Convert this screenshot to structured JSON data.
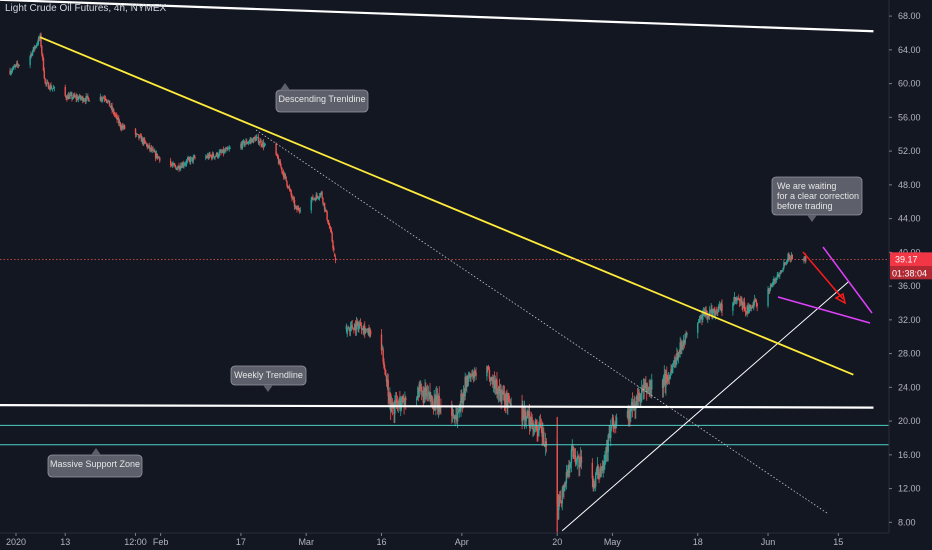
{
  "title": "Light Crude Oil Futures, 4h, NYMEX",
  "price_tag": "39.17",
  "countdown_tag": "01:38:04",
  "annotations": {
    "descending": "Descending Trenldine",
    "weekly": "Weekly Trendline",
    "support": "Massive Support Zone",
    "waiting": [
      "We are waiting",
      "for a clear correction",
      "before trading"
    ]
  },
  "colors": {
    "background": "#131722",
    "bull_candle": "#26a69a",
    "bear_candle": "#ef5350",
    "descending_trendline": "#ffeb3b",
    "horizontal_lines": "#ffffff",
    "support_zone_lines": "#4dd0c8",
    "price_line": "#ef5350",
    "arrow": "#ff1a1a",
    "triangle": "#e040fb"
  },
  "chart_data": {
    "type": "candlestick",
    "y_axis": {
      "range": [
        6.5,
        70.5
      ],
      "ticks": [
        "68.00",
        "64.00",
        "60.00",
        "56.00",
        "52.00",
        "48.00",
        "44.00",
        "40.00",
        "36.00",
        "32.00",
        "28.00",
        "24.00",
        "20.00",
        "16.00",
        "12.00",
        "8.00"
      ]
    },
    "x_axis": {
      "ticks": [
        "2020",
        "13",
        "12:00",
        "Feb",
        "17",
        "Mar",
        "16",
        "Apr",
        "20",
        "May",
        "18",
        "Jun",
        "15"
      ]
    },
    "price_series": [
      [
        "2020-01-02",
        61.5
      ],
      [
        "2020-01-06",
        63.3
      ],
      [
        "2020-01-08",
        65.5
      ],
      [
        "2020-01-09",
        60.0
      ],
      [
        "2020-01-13",
        58.5
      ],
      [
        "2020-01-17",
        58.2
      ],
      [
        "2020-01-21",
        58.4
      ],
      [
        "2020-01-24",
        55.0
      ],
      [
        "2020-01-28",
        53.5
      ],
      [
        "2020-01-31",
        51.5
      ],
      [
        "2020-02-04",
        50.0
      ],
      [
        "2020-02-07",
        51.0
      ],
      [
        "2020-02-12",
        51.5
      ],
      [
        "2020-02-14",
        52.0
      ],
      [
        "2020-02-20",
        53.5
      ],
      [
        "2020-02-24",
        51.5
      ],
      [
        "2020-02-26",
        48.5
      ],
      [
        "2020-02-28",
        45.0
      ],
      [
        "2020-03-04",
        47.0
      ],
      [
        "2020-03-06",
        42.0
      ],
      [
        "2020-03-09",
        31.0
      ],
      [
        "2020-03-12",
        31.5
      ],
      [
        "2020-03-16",
        28.5
      ],
      [
        "2020-03-18",
        21.5
      ],
      [
        "2020-03-23",
        23.5
      ],
      [
        "2020-03-26",
        22.5
      ],
      [
        "2020-03-31",
        20.5
      ],
      [
        "2020-04-02",
        25.0
      ],
      [
        "2020-04-06",
        26.0
      ],
      [
        "2020-04-09",
        23.0
      ],
      [
        "2020-04-14",
        20.5
      ],
      [
        "2020-04-17",
        18.5
      ],
      [
        "2020-04-20",
        10.0
      ],
      [
        "2020-04-21",
        11.5
      ],
      [
        "2020-04-23",
        16.5
      ],
      [
        "2020-04-27",
        12.5
      ],
      [
        "2020-04-29",
        15.0
      ],
      [
        "2020-05-01",
        19.5
      ],
      [
        "2020-05-04",
        20.5
      ],
      [
        "2020-05-07",
        23.5
      ],
      [
        "2020-05-12",
        25.0
      ],
      [
        "2020-05-15",
        29.5
      ],
      [
        "2020-05-19",
        32.5
      ],
      [
        "2020-05-22",
        33.2
      ],
      [
        "2020-05-26",
        34.3
      ],
      [
        "2020-05-28",
        33.0
      ],
      [
        "2020-06-01",
        35.5
      ],
      [
        "2020-06-03",
        37.3
      ],
      [
        "2020-06-05",
        39.5
      ],
      [
        "2020-06-08",
        39.2
      ]
    ],
    "overlays": {
      "descending_trendline": [
        [
          "2020-01-08",
          65.5
        ],
        [
          "2020-06-18",
          25.5
        ]
      ],
      "resistance_line": [
        [
          "2019-12-28",
          70.0
        ],
        [
          "2020-06-22",
          66.2
        ]
      ],
      "weekly_trendline": [
        [
          "2019-12-28",
          21.9
        ],
        [
          "2020-06-22",
          21.6
        ]
      ],
      "support_zone": [
        19.5,
        17.2
      ],
      "dotted_projection": [
        [
          "2020-02-20",
          54.5
        ],
        [
          "2020-06-13",
          9.0
        ]
      ],
      "rising_trendline": [
        [
          "2020-04-21",
          7.0
        ],
        [
          "2020-06-17",
          36.5
        ]
      ],
      "current_price": 39.17
    }
  }
}
